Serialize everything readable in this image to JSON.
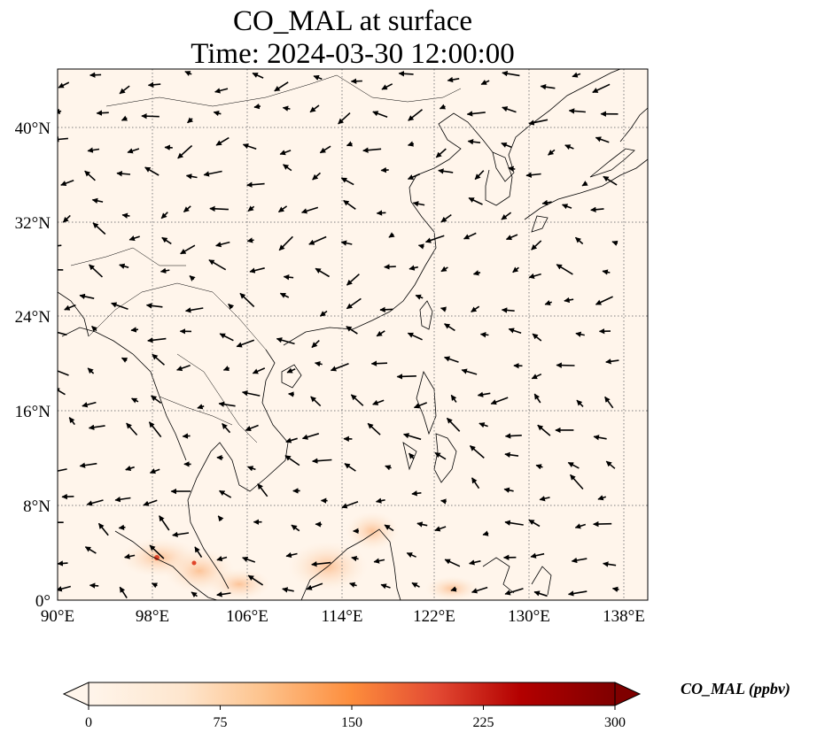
{
  "title": {
    "line1": "CO_MAL at surface",
    "line2": "Time: 2024-03-30 12:00:00"
  },
  "map": {
    "variable": "CO_MAL",
    "level": "surface",
    "lon_range": [
      90,
      139.5
    ],
    "lat_range": [
      0,
      45
    ],
    "lon_ticks": [
      "90°E",
      "98°E",
      "106°E",
      "114°E",
      "122°E",
      "130°E",
      "138°E"
    ],
    "lat_ticks": [
      "0°",
      "8°N",
      "16°N",
      "24°N",
      "32°N",
      "40°N"
    ],
    "gridlines": true,
    "background_color": "#fff5eb",
    "hotspot_color": "#e0452a",
    "overlay": "wind vectors"
  },
  "colorbar": {
    "label": "CO_MAL (ppbv)",
    "ticks": [
      "0",
      "75",
      "150",
      "225",
      "300"
    ],
    "range": [
      0,
      300
    ],
    "extend": "both",
    "colormap": [
      "#fff5eb",
      "#fdd49e",
      "#fdae6b",
      "#f16913",
      "#d94801",
      "#a50f15",
      "#67000d"
    ]
  }
}
